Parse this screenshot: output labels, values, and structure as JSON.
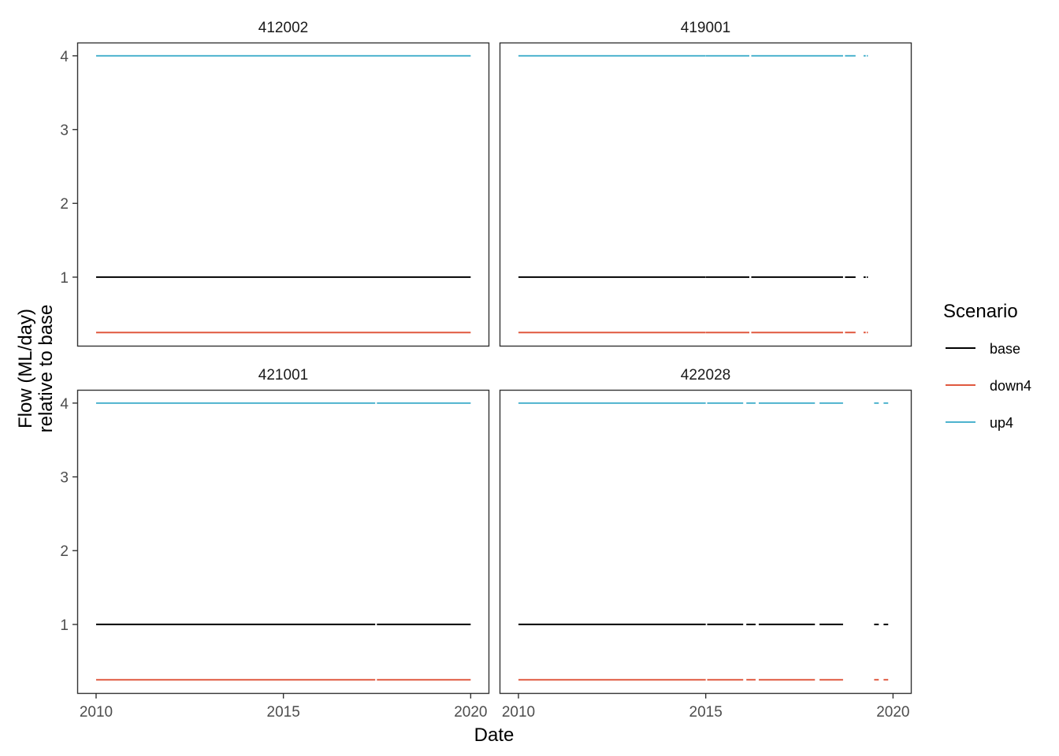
{
  "chart_data": {
    "type": "line",
    "xlabel": "Date",
    "ylabel_lines": [
      "Flow (ML/day)",
      "relative to base"
    ],
    "x_ticks": [
      "2010",
      "2015",
      "2020"
    ],
    "y_ticks": [
      1,
      2,
      3,
      4
    ],
    "xlim": [
      "2009-07-01",
      "2020-07-01"
    ],
    "ylim": [
      0.06,
      4.18
    ],
    "legend": {
      "title": "Scenario",
      "position": "right",
      "entries": [
        {
          "name": "base",
          "color": "#000000"
        },
        {
          "name": "down4",
          "color": "#E0583F"
        },
        {
          "name": "up4",
          "color": "#4DB3CE"
        }
      ]
    },
    "series_values": {
      "base": 1,
      "down4": 0.25,
      "up4": 4
    },
    "panels": [
      {
        "title": "412002",
        "segments": [
          [
            "2010-01-01",
            "2020-01-01"
          ]
        ]
      },
      {
        "title": "419001",
        "segments": [
          [
            "2010-01-01",
            "2014-12-31"
          ],
          [
            "2015-01-02",
            "2016-03-01"
          ],
          [
            "2016-03-20",
            "2018-09-01"
          ],
          [
            "2018-09-20",
            "2019-01-01"
          ],
          [
            "2019-03-20",
            "2019-04-10"
          ],
          [
            "2019-04-20",
            "2019-05-01"
          ]
        ]
      },
      {
        "title": "421001",
        "segments": [
          [
            "2010-01-01",
            "2017-06-15"
          ],
          [
            "2017-07-01",
            "2020-01-01"
          ]
        ]
      },
      {
        "title": "422028",
        "segments": [
          [
            "2010-01-01",
            "2015-01-01"
          ],
          [
            "2015-01-15",
            "2016-01-01"
          ],
          [
            "2016-02-01",
            "2016-05-01"
          ],
          [
            "2016-06-01",
            "2017-12-01"
          ],
          [
            "2018-01-15",
            "2018-09-01"
          ],
          [
            "2019-07-01",
            "2019-08-15"
          ],
          [
            "2019-10-01",
            "2019-11-15"
          ]
        ]
      }
    ]
  }
}
